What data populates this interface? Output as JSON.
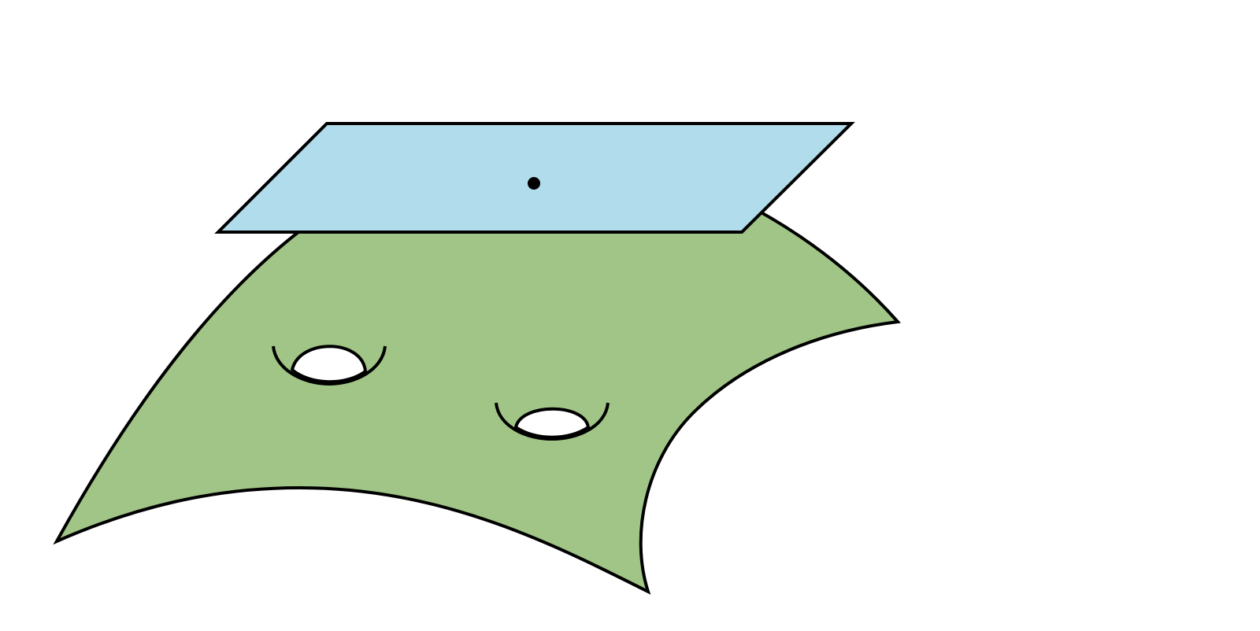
{
  "diagram": {
    "surface_color": "#a0c586",
    "plane_color": "#b0dcec",
    "hole_color": "#ffffff",
    "stroke_color": "#000000",
    "point_color": "#000000",
    "elements": [
      {
        "name": "curved-surface",
        "shape": "curved-sheet"
      },
      {
        "name": "handle-hole-left",
        "shape": "genus-handle"
      },
      {
        "name": "handle-hole-right",
        "shape": "genus-handle"
      },
      {
        "name": "tangent-plane",
        "shape": "parallelogram"
      },
      {
        "name": "tangent-point",
        "shape": "dot"
      }
    ]
  }
}
